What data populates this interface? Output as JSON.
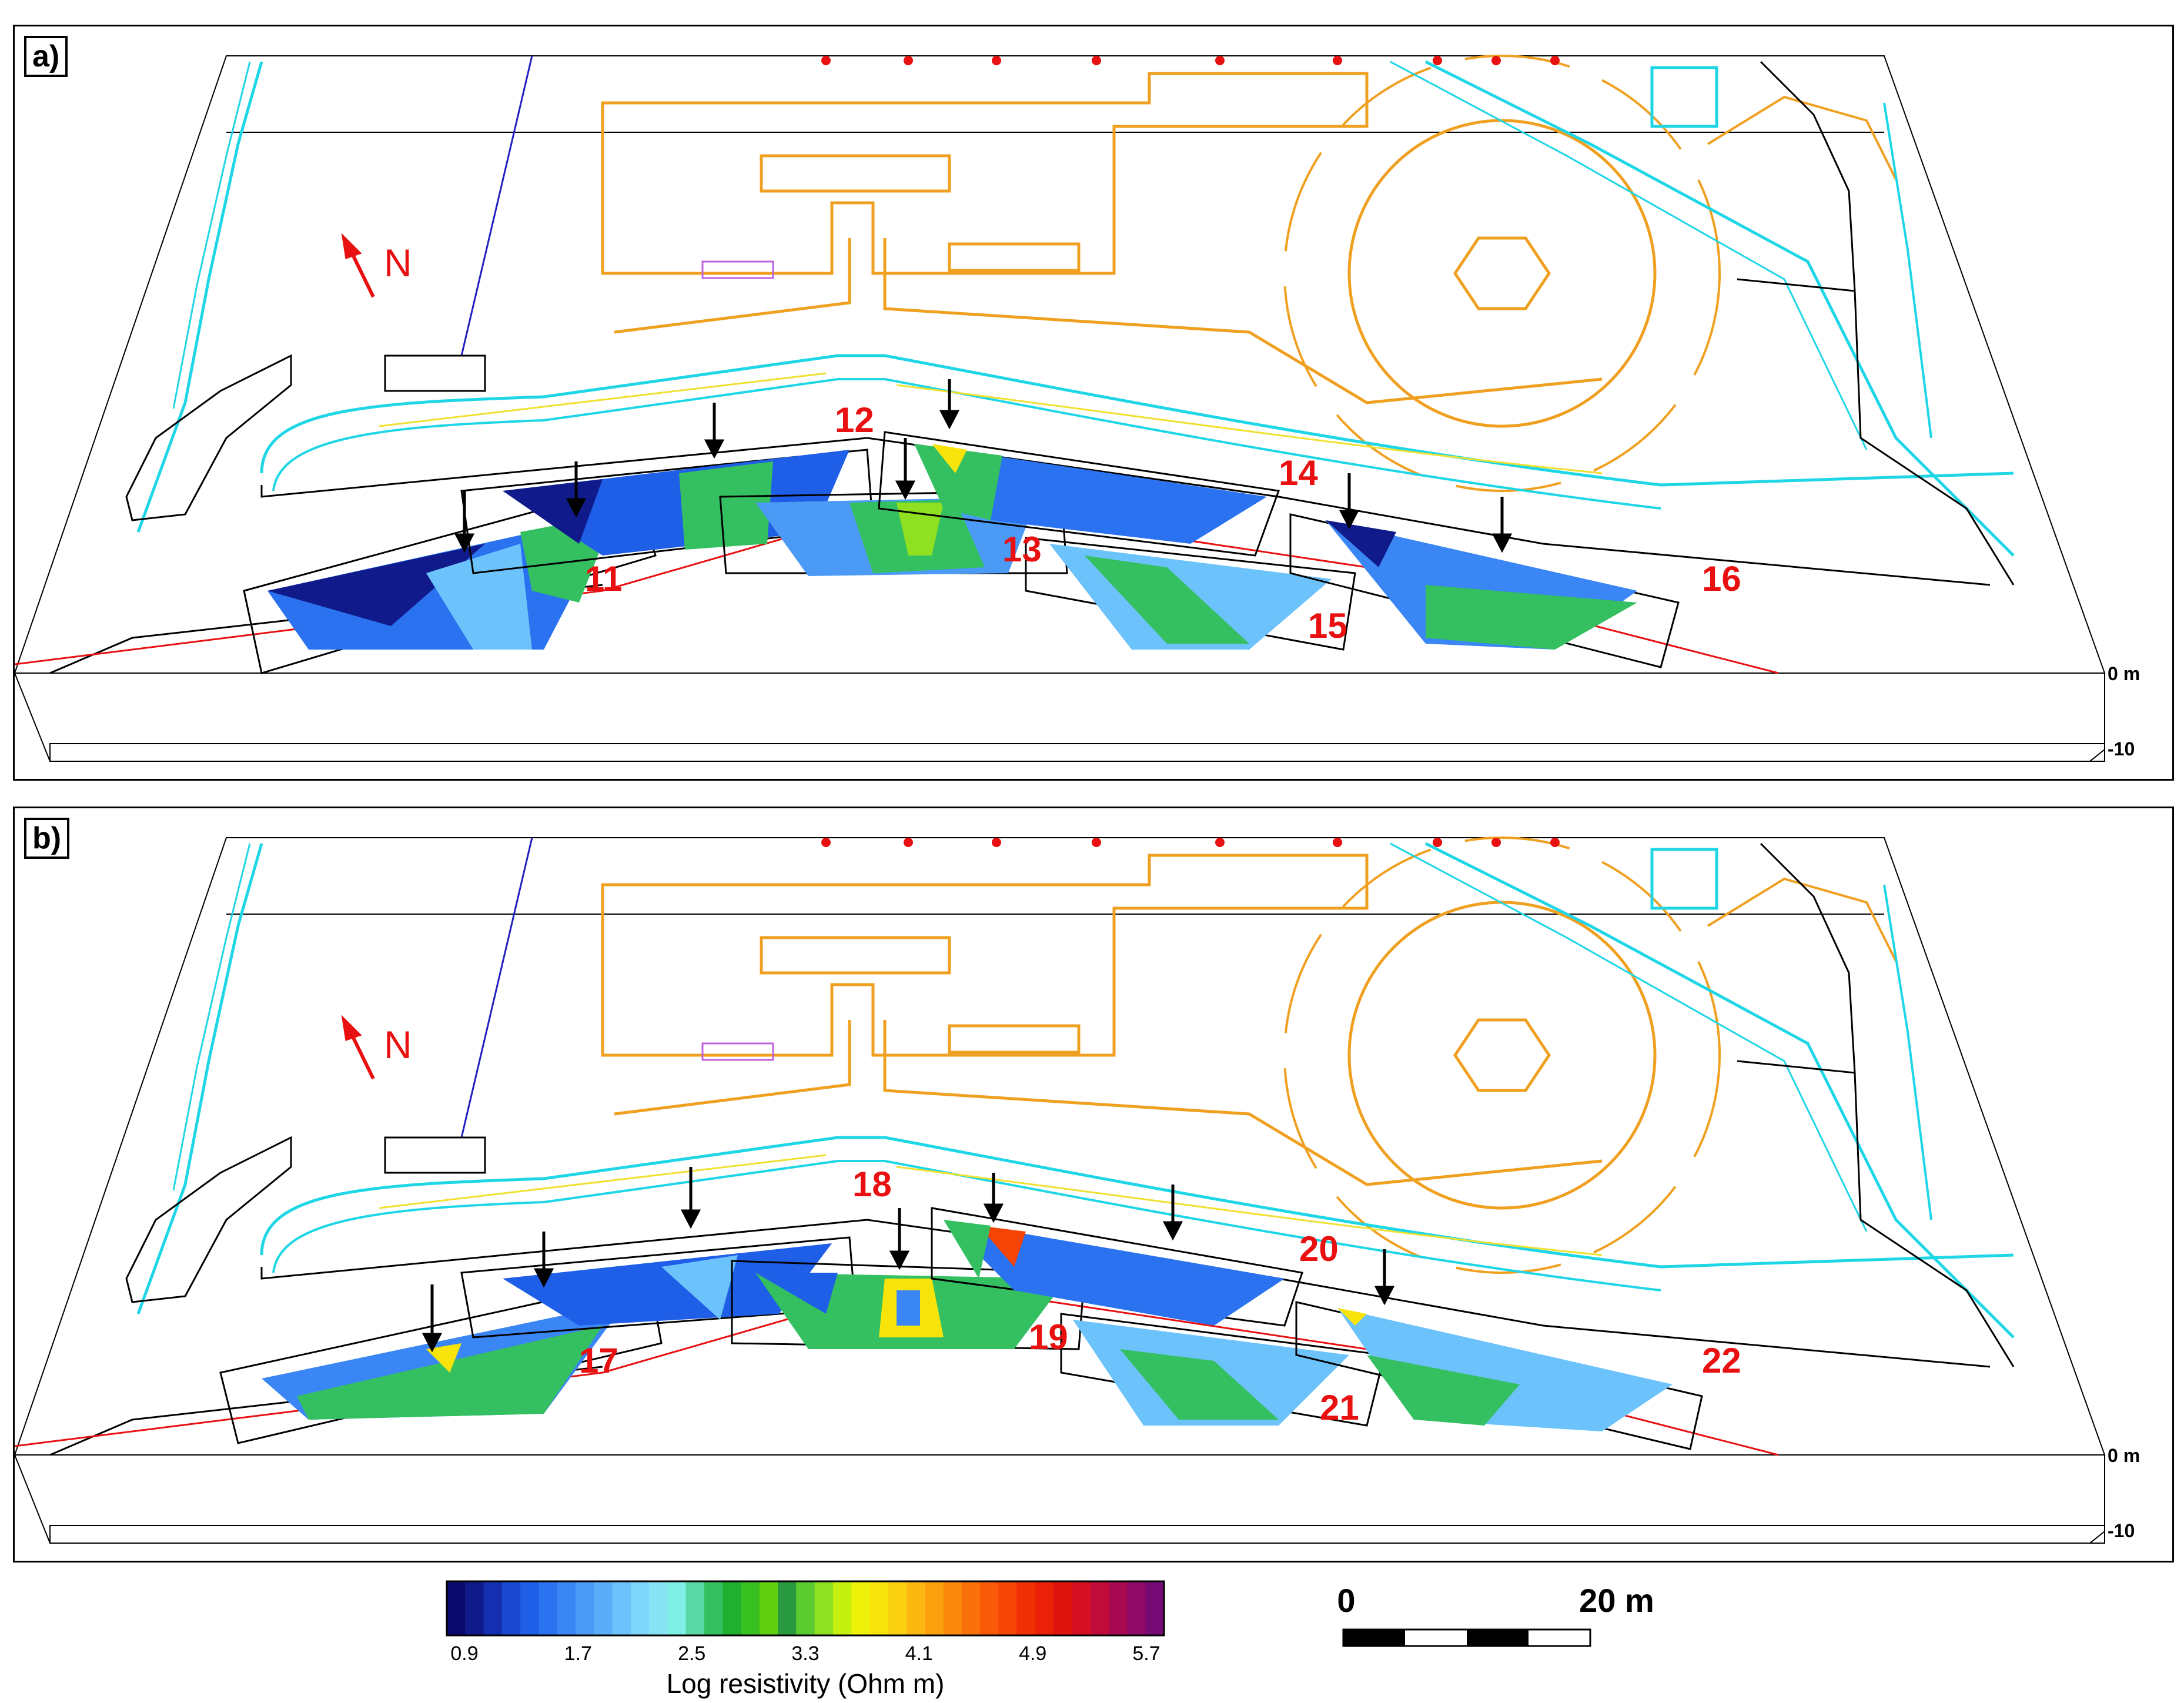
{
  "panels": [
    {
      "label": "a)",
      "north": "N",
      "depth_top": "0 m",
      "depth_bottom": "-10",
      "profiles": [
        {
          "id": "11",
          "text": "11"
        },
        {
          "id": "12",
          "text": "12"
        },
        {
          "id": "13",
          "text": "13"
        },
        {
          "id": "14",
          "text": "14"
        },
        {
          "id": "15",
          "text": "15"
        },
        {
          "id": "16",
          "text": "16"
        }
      ]
    },
    {
      "label": "b)",
      "north": "N",
      "depth_top": "0 m",
      "depth_bottom": "-10",
      "profiles": [
        {
          "id": "17",
          "text": "17"
        },
        {
          "id": "18",
          "text": "18"
        },
        {
          "id": "19",
          "text": "19"
        },
        {
          "id": "20",
          "text": "20"
        },
        {
          "id": "21",
          "text": "21"
        },
        {
          "id": "22",
          "text": "22"
        }
      ]
    }
  ],
  "colorbar": {
    "title": "Log resistivity (Ohm m)",
    "tick_labels": [
      "0.9",
      "1.7",
      "2.5",
      "3.3",
      "4.1",
      "4.9",
      "5.7"
    ],
    "colors": [
      "#0a0a6e",
      "#101a8a",
      "#1430b0",
      "#1a48d0",
      "#1f5ee6",
      "#2a72f0",
      "#3a86f4",
      "#4a9af6",
      "#5aaef8",
      "#6cc2fa",
      "#7ed6fc",
      "#86e4f4",
      "#7ef0e6",
      "#5ad8a6",
      "#34c060",
      "#20b030",
      "#38c020",
      "#60d010",
      "#2a9a40",
      "#5acc30",
      "#8ee020",
      "#c6f010",
      "#eef20a",
      "#f8e40a",
      "#fad010",
      "#fcb810",
      "#fca00e",
      "#fc880c",
      "#fa700a",
      "#f85a08",
      "#f44406",
      "#f03004",
      "#ea2008",
      "#e0140e",
      "#d41022",
      "#c00c3a",
      "#a80a52",
      "#8e0a66",
      "#760a74"
    ]
  },
  "scalebar": {
    "start_label": "0",
    "end_label": "20 m"
  },
  "colors": {
    "road": "#1fd6e6",
    "plaza": "#f0a020",
    "profile_line": "#e81010",
    "marker": "#e81010",
    "outline": "#000000"
  }
}
